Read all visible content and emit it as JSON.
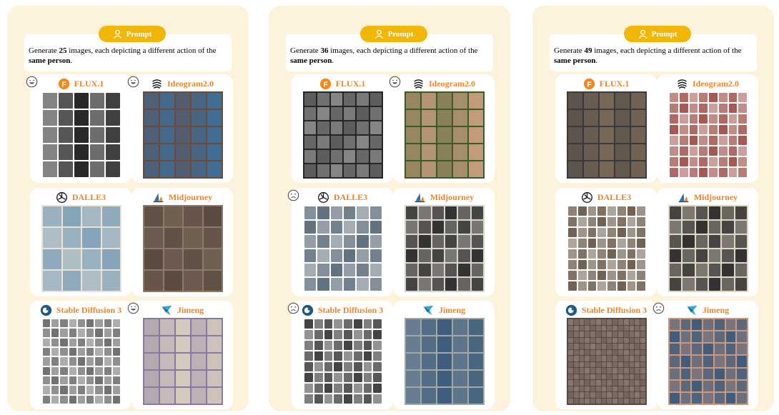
{
  "prompt_label": "Prompt",
  "panels": [
    {
      "prompt_pre": "Generate ",
      "count": "25",
      "prompt_post": " images, each depicting a different action of the ",
      "prompt_bold": "same person",
      "prompt_end": ".",
      "models": [
        {
          "name": "FLUX.1",
          "face": "happy",
          "grid": 5,
          "bg": "#ffffff",
          "fg": "#1e1e1e"
        },
        {
          "name": "Ideogram2.0",
          "face": "happy",
          "grid": 5,
          "bg": "#6b4a3a",
          "fg": "#3e6f9a"
        },
        {
          "name": "DALLE3",
          "face": "none",
          "grid": 4,
          "bg": "#e9e2d6",
          "fg": "#7fa0b8"
        },
        {
          "name": "Midjourney",
          "face": "none",
          "grid": 4,
          "bg": "#8b7a6a",
          "fg": "#5a4a3e"
        },
        {
          "name": "Stable Diffusion 3",
          "face": "none",
          "grid": 9,
          "bg": "#ffffff",
          "fg": "#6a6a6a"
        },
        {
          "name": "Jimeng",
          "face": "happy",
          "grid": 5,
          "bg": "#8a7aa0",
          "fg": "#d8d0c0"
        }
      ]
    },
    {
      "prompt_pre": "Generate ",
      "count": "36",
      "prompt_post": " images, each depicting a different action of the ",
      "prompt_bold": "same person",
      "prompt_end": ".",
      "models": [
        {
          "name": "FLUX.1",
          "face": "none",
          "grid": 6,
          "bg": "#262626",
          "fg": "#8a8a8a"
        },
        {
          "name": "Ideogram2.0",
          "face": "happy",
          "grid": 5,
          "bg": "#3c5a2a",
          "fg": "#c8a080"
        },
        {
          "name": "DALLE3",
          "face": "sad",
          "grid": 6,
          "bg": "#ffffff",
          "fg": "#5a6a7a"
        },
        {
          "name": "Midjourney",
          "face": "none",
          "grid": 6,
          "bg": "#d8d4cc",
          "fg": "#2a2a2a"
        },
        {
          "name": "Stable Diffusion 3",
          "face": "sad",
          "grid": 8,
          "bg": "#ffffff",
          "fg": "#3a3a3a"
        },
        {
          "name": "Jimeng",
          "face": "none",
          "grid": 5,
          "bg": "#a0a8a8",
          "fg": "#3a5a7a"
        }
      ]
    },
    {
      "prompt_pre": "Generate ",
      "count": "49",
      "prompt_post": " images, each depicting a different action of the ",
      "prompt_bold": "same person",
      "prompt_end": ".",
      "models": [
        {
          "name": "FLUX.1",
          "face": "none",
          "grid": 5,
          "bg": "#3a3a3a",
          "fg": "#7a6a5a"
        },
        {
          "name": "Ideogram2.0",
          "face": "none",
          "grid": 8,
          "bg": "#ffffff",
          "fg": "#a0504a"
        },
        {
          "name": "DALLE3",
          "face": "none",
          "grid": 8,
          "bg": "#ffffff",
          "fg": "#6a5a4a"
        },
        {
          "name": "Midjourney",
          "face": "none",
          "grid": 6,
          "bg": "#e0d6c6",
          "fg": "#2a2a2a"
        },
        {
          "name": "Stable Diffusion 3",
          "face": "none",
          "grid": 14,
          "bg": "#5a4a44",
          "fg": "#8a7a70"
        },
        {
          "name": "Jimeng",
          "face": "sad",
          "grid": 7,
          "bg": "#c89880",
          "fg": "#3a5a7a"
        }
      ]
    }
  ]
}
